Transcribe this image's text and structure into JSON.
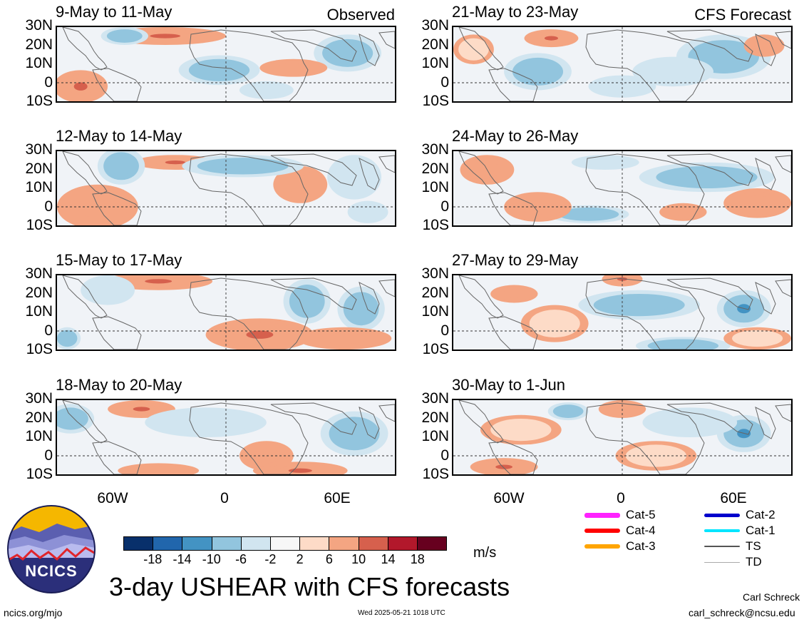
{
  "observed_label": "Observed",
  "forecast_label": "CFS Forecast",
  "panels_left": [
    "9-May to 11-May",
    "12-May to 14-May",
    "15-May to 17-May",
    "18-May to 20-May"
  ],
  "panels_right": [
    "21-May to 23-May",
    "24-May to 26-May",
    "27-May to 29-May",
    "30-May to 1-Jun"
  ],
  "lat_labels": [
    "30N",
    "20N",
    "10N",
    "0",
    "10S"
  ],
  "lon_labels": [
    "60W",
    "0",
    "60E"
  ],
  "colorbar": {
    "ticks": [
      "-18",
      "-14",
      "-10",
      "-6",
      "-2",
      "2",
      "6",
      "10",
      "14",
      "18"
    ],
    "colors": [
      "#08306b",
      "#2166ac",
      "#4393c3",
      "#92c5de",
      "#d1e5f0",
      "#f7f7f7",
      "#fddbc7",
      "#f4a582",
      "#d6604d",
      "#b2182b",
      "#67001f"
    ],
    "units": "m/s"
  },
  "legend": {
    "items": [
      {
        "label": "Cat-5",
        "color": "#ff22ff"
      },
      {
        "label": "Cat-4",
        "color": "#ff0000"
      },
      {
        "label": "Cat-3",
        "color": "#ffa500"
      },
      {
        "label": "Cat-2",
        "color": "#0000cc"
      },
      {
        "label": "Cat-1",
        "color": "#00e5ff"
      },
      {
        "label": "TS",
        "color": "#555555"
      },
      {
        "label": "TD",
        "color": "#aaaaaa"
      }
    ]
  },
  "main_title": "3-day USHEAR with CFS forecasts",
  "logo_text": "NCICS",
  "site": "ncics.org/mjo",
  "timestamp": "Wed 2025-05-21 1018 UTC",
  "author": "Carl Schreck",
  "email": "carl_schreck@ncsu.edu"
}
